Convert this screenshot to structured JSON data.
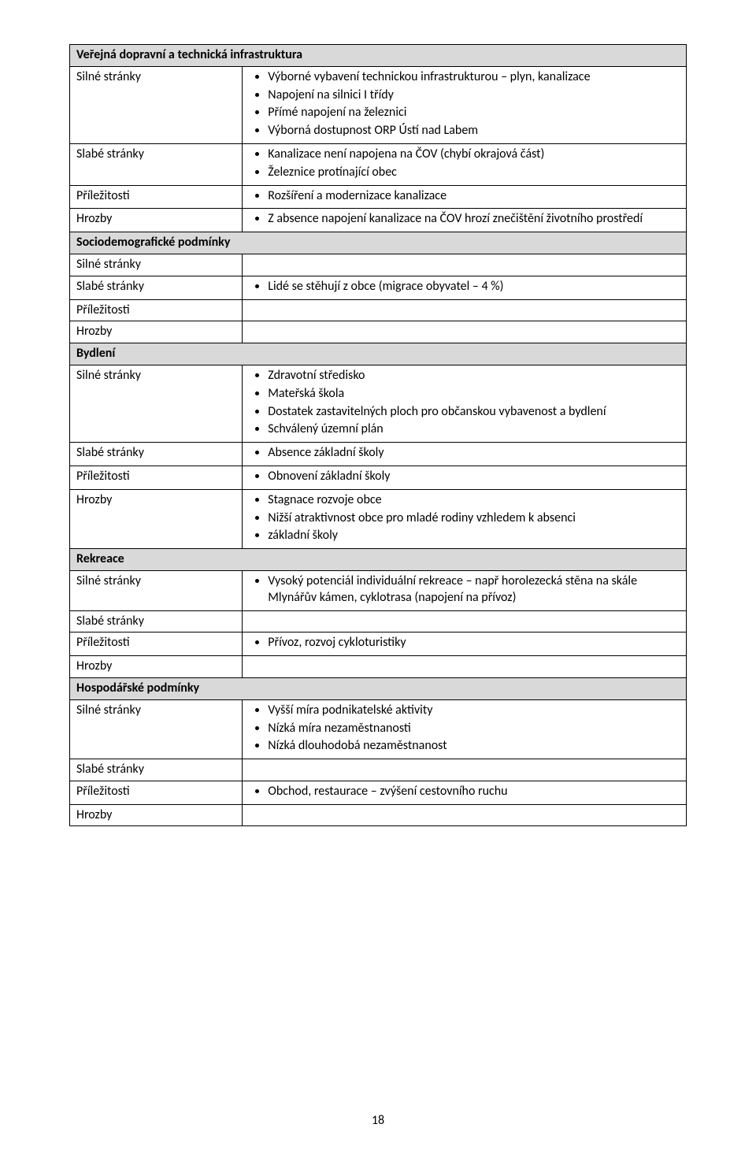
{
  "page_number": "18",
  "colors": {
    "section_bg": "#d9d9d9",
    "border": "#000000",
    "text": "#000000",
    "page_bg": "#ffffff"
  },
  "labels": {
    "strengths": "Silné stránky",
    "weaknesses": "Slabé stránky",
    "opportunities": "Příležitosti",
    "threats": "Hrozby"
  },
  "sections": {
    "infra": {
      "title": "Veřejná dopravní a technická infrastruktura",
      "strengths": [
        "Výborné vybavení technickou infrastrukturou – plyn, kanalizace",
        "Napojení na silnici I třídy",
        "Přímé napojení na železnici",
        "Výborná dostupnost ORP Ústí nad Labem"
      ],
      "weaknesses": [
        "Kanalizace není napojena na ČOV (chybí okrajová část)",
        "Železnice protínající obec"
      ],
      "opportunities": [
        "Rozšíření a modernizace kanalizace"
      ],
      "threats": [
        "Z absence napojení kanalizace na ČOV hrozí znečištění životního prostředí"
      ]
    },
    "socio": {
      "title": "Sociodemografické podmínky",
      "strengths": [],
      "weaknesses": [
        "Lidé se stěhují z obce (migrace obyvatel – 4 %)"
      ],
      "opportunities": [],
      "threats": []
    },
    "housing": {
      "title": "Bydlení",
      "strengths": [
        "Zdravotní středisko",
        "Mateřská škola",
        "Dostatek zastavitelných ploch pro občanskou vybavenost a bydlení",
        "Schválený územní plán"
      ],
      "weaknesses": [
        "Absence základní školy"
      ],
      "opportunities": [
        "Obnovení základní školy"
      ],
      "threats": [
        "Stagnace rozvoje obce",
        "Nižší atraktivnost obce pro mladé rodiny vzhledem k absenci",
        "základní školy"
      ]
    },
    "recreation": {
      "title": "Rekreace",
      "strengths": [
        "Vysoký potenciál individuální rekreace – např horolezecká stěna na skále Mlynářův kámen, cyklotrasa (napojení na přívoz)"
      ],
      "weaknesses": [],
      "opportunities": [
        "Přívoz, rozvoj cykloturistiky"
      ],
      "threats": []
    },
    "economy": {
      "title": "Hospodářské podmínky",
      "strengths": [
        "Vyšší míra podnikatelské aktivity",
        "Nízká míra nezaměstnanosti",
        "Nízká dlouhodobá nezaměstnanost"
      ],
      "weaknesses": [],
      "opportunities": [
        "Obchod, restaurace – zvýšení cestovního ruchu"
      ],
      "threats": []
    }
  }
}
